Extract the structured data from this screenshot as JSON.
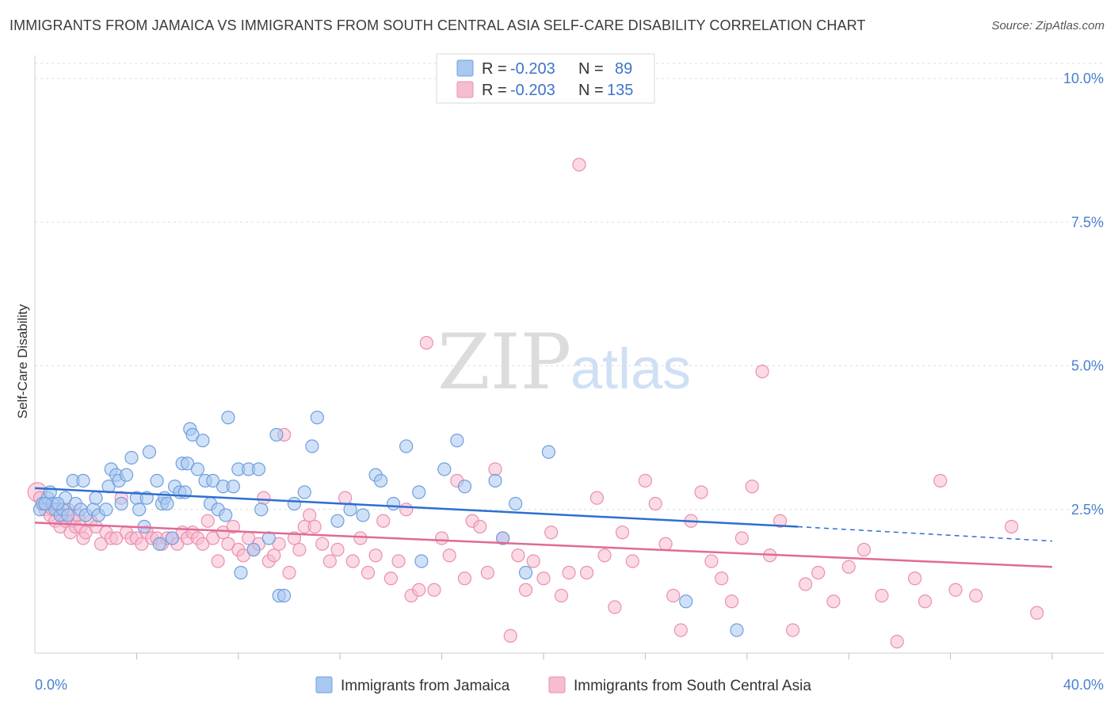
{
  "title": "IMMIGRANTS FROM JAMAICA VS IMMIGRANTS FROM SOUTH CENTRAL ASIA SELF-CARE DISABILITY CORRELATION CHART",
  "source": "Source: ZipAtlas.com",
  "watermark": {
    "zip": "ZIP",
    "atlas": "atlas"
  },
  "legend": {
    "r_label": "R =",
    "n_label": "N =",
    "entries": [
      {
        "r": "-0.203",
        "n": "89"
      },
      {
        "r": "-0.203",
        "n": "135"
      }
    ]
  },
  "colors": {
    "blue_fill": "#a9c8f0",
    "blue_stroke": "#6f9fde",
    "blue_line": "#2e6fd1",
    "pink_fill": "#f6bcd0",
    "pink_stroke": "#ec8fb0",
    "pink_line": "#e06a97"
  },
  "chart_data": {
    "type": "scatter",
    "title": "IMMIGRANTS FROM JAMAICA VS IMMIGRANTS FROM SOUTH CENTRAL ASIA SELF-CARE DISABILITY CORRELATION CHART",
    "xlabel": "",
    "ylabel": "Self-Care Disability",
    "xlim": [
      0,
      40
    ],
    "ylim": [
      0,
      10.4
    ],
    "x_tick_labels": [
      "0.0%",
      "40.0%"
    ],
    "y_ticks": [
      2.5,
      5.0,
      7.5,
      10.0
    ],
    "y_tick_labels": [
      "2.5%",
      "5.0%",
      "7.5%",
      "10.0%"
    ],
    "grid": "horizontal dashed",
    "legend_position": "top-center",
    "series": [
      {
        "name": "Immigrants from Jamaica",
        "R": -0.203,
        "N": 89,
        "trend": {
          "x0": 0,
          "y0": 2.87,
          "x1": 30,
          "y1": 2.2,
          "dashed_to_x": 40,
          "dashed_to_y": 1.95
        },
        "points": [
          [
            0.2,
            2.5
          ],
          [
            0.3,
            2.6
          ],
          [
            0.5,
            2.7
          ],
          [
            0.6,
            2.8
          ],
          [
            0.7,
            2.6
          ],
          [
            0.8,
            2.5
          ],
          [
            1.0,
            2.4
          ],
          [
            1.1,
            2.5
          ],
          [
            1.2,
            2.7
          ],
          [
            1.3,
            2.4
          ],
          [
            1.5,
            3.0
          ],
          [
            1.6,
            2.6
          ],
          [
            1.8,
            2.5
          ],
          [
            1.9,
            3.0
          ],
          [
            2.0,
            2.4
          ],
          [
            2.3,
            2.5
          ],
          [
            2.4,
            2.7
          ],
          [
            2.5,
            2.4
          ],
          [
            2.8,
            2.5
          ],
          [
            2.9,
            2.9
          ],
          [
            3.0,
            3.2
          ],
          [
            3.2,
            3.1
          ],
          [
            3.3,
            3.0
          ],
          [
            3.4,
            2.6
          ],
          [
            3.6,
            3.1
          ],
          [
            3.8,
            3.4
          ],
          [
            4.0,
            2.7
          ],
          [
            4.1,
            2.5
          ],
          [
            4.3,
            2.2
          ],
          [
            4.4,
            2.7
          ],
          [
            4.5,
            3.5
          ],
          [
            4.8,
            3.0
          ],
          [
            4.9,
            1.9
          ],
          [
            5.0,
            2.6
          ],
          [
            5.1,
            2.7
          ],
          [
            5.2,
            2.6
          ],
          [
            5.4,
            2.0
          ],
          [
            5.5,
            2.9
          ],
          [
            5.7,
            2.8
          ],
          [
            5.8,
            3.3
          ],
          [
            5.9,
            2.8
          ],
          [
            6.0,
            3.3
          ],
          [
            6.1,
            3.9
          ],
          [
            6.2,
            3.8
          ],
          [
            6.4,
            3.2
          ],
          [
            6.6,
            3.7
          ],
          [
            6.7,
            3.0
          ],
          [
            6.9,
            2.6
          ],
          [
            7.0,
            3.0
          ],
          [
            7.2,
            2.5
          ],
          [
            7.4,
            2.9
          ],
          [
            7.5,
            2.4
          ],
          [
            7.6,
            4.1
          ],
          [
            7.8,
            2.9
          ],
          [
            8.0,
            3.2
          ],
          [
            8.1,
            1.4
          ],
          [
            8.4,
            3.2
          ],
          [
            8.6,
            1.8
          ],
          [
            8.8,
            3.2
          ],
          [
            8.9,
            2.5
          ],
          [
            9.2,
            2.0
          ],
          [
            9.5,
            3.8
          ],
          [
            9.6,
            1.0
          ],
          [
            9.8,
            1.0
          ],
          [
            10.2,
            2.6
          ],
          [
            10.6,
            2.8
          ],
          [
            10.9,
            3.6
          ],
          [
            11.1,
            4.1
          ],
          [
            11.9,
            2.3
          ],
          [
            12.4,
            2.5
          ],
          [
            12.9,
            2.4
          ],
          [
            13.4,
            3.1
          ],
          [
            13.6,
            3.0
          ],
          [
            14.1,
            2.6
          ],
          [
            14.6,
            3.6
          ],
          [
            15.1,
            2.8
          ],
          [
            15.2,
            1.6
          ],
          [
            16.1,
            3.2
          ],
          [
            16.6,
            3.7
          ],
          [
            16.9,
            2.9
          ],
          [
            18.1,
            3.0
          ],
          [
            18.4,
            2.0
          ],
          [
            18.9,
            2.6
          ],
          [
            19.3,
            1.4
          ],
          [
            20.2,
            3.5
          ],
          [
            25.6,
            0.9
          ],
          [
            27.6,
            0.4
          ],
          [
            0.4,
            2.6
          ],
          [
            0.9,
            2.6
          ]
        ]
      },
      {
        "name": "Immigrants from South Central Asia",
        "R": -0.203,
        "N": 135,
        "trend": {
          "x0": 0,
          "y0": 2.27,
          "x1": 40,
          "y1": 1.5
        },
        "points": [
          [
            0.1,
            2.8
          ],
          [
            0.2,
            2.7
          ],
          [
            0.3,
            2.6
          ],
          [
            0.4,
            2.5
          ],
          [
            0.5,
            2.6
          ],
          [
            0.6,
            2.4
          ],
          [
            0.7,
            2.5
          ],
          [
            0.8,
            2.3
          ],
          [
            0.9,
            2.5
          ],
          [
            1.0,
            2.2
          ],
          [
            1.1,
            2.4
          ],
          [
            1.2,
            2.3
          ],
          [
            1.3,
            2.5
          ],
          [
            1.4,
            2.1
          ],
          [
            1.5,
            2.3
          ],
          [
            1.6,
            2.2
          ],
          [
            1.7,
            2.4
          ],
          [
            1.8,
            2.2
          ],
          [
            1.9,
            2.0
          ],
          [
            2.0,
            2.1
          ],
          [
            2.2,
            2.3
          ],
          [
            2.4,
            2.2
          ],
          [
            2.6,
            1.9
          ],
          [
            2.8,
            2.1
          ],
          [
            3.0,
            2.0
          ],
          [
            3.2,
            2.0
          ],
          [
            3.4,
            2.7
          ],
          [
            3.6,
            2.1
          ],
          [
            3.8,
            2.0
          ],
          [
            4.0,
            2.0
          ],
          [
            4.2,
            1.9
          ],
          [
            4.4,
            2.1
          ],
          [
            4.6,
            2.0
          ],
          [
            4.8,
            2.0
          ],
          [
            5.0,
            1.9
          ],
          [
            5.2,
            2.0
          ],
          [
            5.4,
            2.0
          ],
          [
            5.6,
            1.9
          ],
          [
            5.8,
            2.1
          ],
          [
            6.0,
            2.0
          ],
          [
            6.2,
            2.1
          ],
          [
            6.4,
            2.0
          ],
          [
            6.6,
            1.9
          ],
          [
            6.8,
            2.3
          ],
          [
            7.0,
            2.0
          ],
          [
            7.2,
            1.6
          ],
          [
            7.4,
            2.1
          ],
          [
            7.6,
            1.9
          ],
          [
            7.8,
            2.2
          ],
          [
            8.0,
            1.8
          ],
          [
            8.2,
            1.7
          ],
          [
            8.4,
            2.0
          ],
          [
            8.6,
            1.8
          ],
          [
            8.8,
            1.9
          ],
          [
            9.0,
            2.7
          ],
          [
            9.2,
            1.6
          ],
          [
            9.4,
            1.7
          ],
          [
            9.6,
            1.9
          ],
          [
            9.8,
            3.8
          ],
          [
            10.0,
            1.4
          ],
          [
            10.2,
            2.0
          ],
          [
            10.4,
            1.8
          ],
          [
            10.6,
            2.2
          ],
          [
            10.8,
            2.4
          ],
          [
            11.0,
            2.2
          ],
          [
            11.3,
            1.9
          ],
          [
            11.6,
            1.6
          ],
          [
            11.9,
            1.8
          ],
          [
            12.2,
            2.7
          ],
          [
            12.5,
            1.6
          ],
          [
            12.8,
            2.0
          ],
          [
            13.1,
            1.4
          ],
          [
            13.4,
            1.7
          ],
          [
            13.7,
            2.3
          ],
          [
            14.0,
            1.3
          ],
          [
            14.3,
            1.6
          ],
          [
            14.6,
            2.5
          ],
          [
            14.8,
            1.0
          ],
          [
            15.1,
            1.1
          ],
          [
            15.4,
            5.4
          ],
          [
            15.7,
            1.1
          ],
          [
            16.0,
            2.0
          ],
          [
            16.3,
            1.7
          ],
          [
            16.6,
            3.0
          ],
          [
            16.9,
            1.3
          ],
          [
            17.2,
            2.3
          ],
          [
            17.5,
            2.2
          ],
          [
            17.8,
            1.4
          ],
          [
            18.1,
            3.2
          ],
          [
            18.4,
            2.0
          ],
          [
            18.7,
            0.3
          ],
          [
            19.0,
            1.7
          ],
          [
            19.3,
            1.1
          ],
          [
            19.6,
            1.6
          ],
          [
            20.0,
            1.3
          ],
          [
            20.3,
            2.1
          ],
          [
            20.7,
            1.0
          ],
          [
            21.0,
            1.4
          ],
          [
            21.4,
            8.5
          ],
          [
            21.7,
            1.4
          ],
          [
            22.1,
            2.7
          ],
          [
            22.4,
            1.7
          ],
          [
            22.8,
            0.8
          ],
          [
            23.1,
            2.1
          ],
          [
            23.5,
            1.6
          ],
          [
            24.0,
            3.0
          ],
          [
            24.4,
            2.6
          ],
          [
            24.8,
            1.9
          ],
          [
            25.1,
            1.0
          ],
          [
            25.4,
            0.4
          ],
          [
            25.8,
            2.3
          ],
          [
            26.2,
            2.8
          ],
          [
            26.6,
            1.6
          ],
          [
            27.0,
            1.3
          ],
          [
            27.4,
            0.9
          ],
          [
            27.8,
            2.0
          ],
          [
            28.2,
            2.9
          ],
          [
            28.6,
            4.9
          ],
          [
            28.9,
            1.7
          ],
          [
            29.3,
            2.3
          ],
          [
            29.8,
            0.4
          ],
          [
            30.3,
            1.2
          ],
          [
            30.8,
            1.4
          ],
          [
            31.4,
            0.9
          ],
          [
            32.0,
            1.5
          ],
          [
            32.6,
            1.8
          ],
          [
            33.3,
            1.0
          ],
          [
            33.9,
            0.2
          ],
          [
            34.6,
            1.3
          ],
          [
            35.0,
            0.9
          ],
          [
            35.6,
            3.0
          ],
          [
            36.2,
            1.1
          ],
          [
            37.0,
            1.0
          ],
          [
            38.4,
            2.2
          ],
          [
            39.4,
            0.7
          ]
        ]
      }
    ]
  },
  "bottom_legend": [
    "Immigrants from Jamaica",
    "Immigrants from South Central Asia"
  ]
}
